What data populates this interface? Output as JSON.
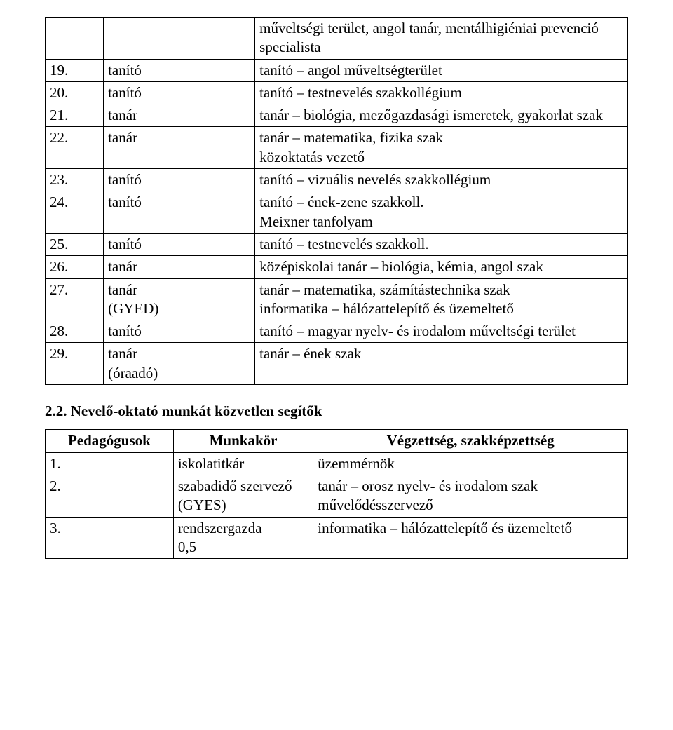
{
  "page": {
    "background_color": "#ffffff",
    "text_color": "#000000",
    "font_family": "Times New Roman",
    "body_fontsize_pt": 16
  },
  "table1": {
    "columns": [
      "",
      "",
      ""
    ],
    "col_widths_pct": [
      10,
      26,
      64
    ],
    "header_row_text": "műveltségi terület, angol tanár, mentálhigiéniai prevenció specialista",
    "rows": [
      {
        "num": "19.",
        "role": "tanító",
        "qual": "tanító – angol műveltségterület"
      },
      {
        "num": "20.",
        "role": "tanító",
        "qual": "tanító – testnevelés szakkollégium"
      },
      {
        "num": "21.",
        "role": "tanár",
        "qual": "tanár – biológia, mezőgazdasági ismeretek, gyakorlat szak"
      },
      {
        "num": "22.",
        "role": "tanár",
        "qual": "tanár – matematika, fizika szak\nközoktatás vezető"
      },
      {
        "num": "23.",
        "role": "tanító",
        "qual": "tanító – vizuális nevelés szakkollégium"
      },
      {
        "num": "24.",
        "role": "tanító",
        "qual": "tanító – ének-zene szakkoll.\nMeixner tanfolyam"
      },
      {
        "num": "25.",
        "role": "tanító",
        "qual": "tanító – testnevelés szakkoll."
      },
      {
        "num": "26.",
        "role": "tanár",
        "qual": "középiskolai tanár – biológia, kémia, angol szak"
      },
      {
        "num": "27.",
        "role": "tanár\n(GYED)",
        "qual": "tanár – matematika, számítástechnika szak\ninformatika – hálózattelepítő és üzemeltető"
      },
      {
        "num": "28.",
        "role": "tanító",
        "qual": "tanító – magyar nyelv- és irodalom műveltségi terület"
      },
      {
        "num": "29.",
        "role": "tanár\n(óraadó)",
        "qual": "tanár – ének szak"
      }
    ]
  },
  "section_heading": "2.2. Nevelő-oktató munkát közvetlen segítők",
  "table2": {
    "columns": [
      "Pedagógusok",
      "Munkakör",
      "Végzettség, szakképzettség"
    ],
    "col_widths_pct": [
      22,
      24,
      54
    ],
    "rows": [
      {
        "num": "1.",
        "role": "iskolatitkár",
        "qual": "üzemmérnök"
      },
      {
        "num": "2.",
        "role": "szabadidő szervező\n(GYES)",
        "qual": "tanár – orosz nyelv- és irodalom szak\nművelődésszervező"
      },
      {
        "num": "3.",
        "role": "rendszergazda\n0,5",
        "qual": "informatika – hálózattelepítő és üzemeltető"
      }
    ]
  }
}
